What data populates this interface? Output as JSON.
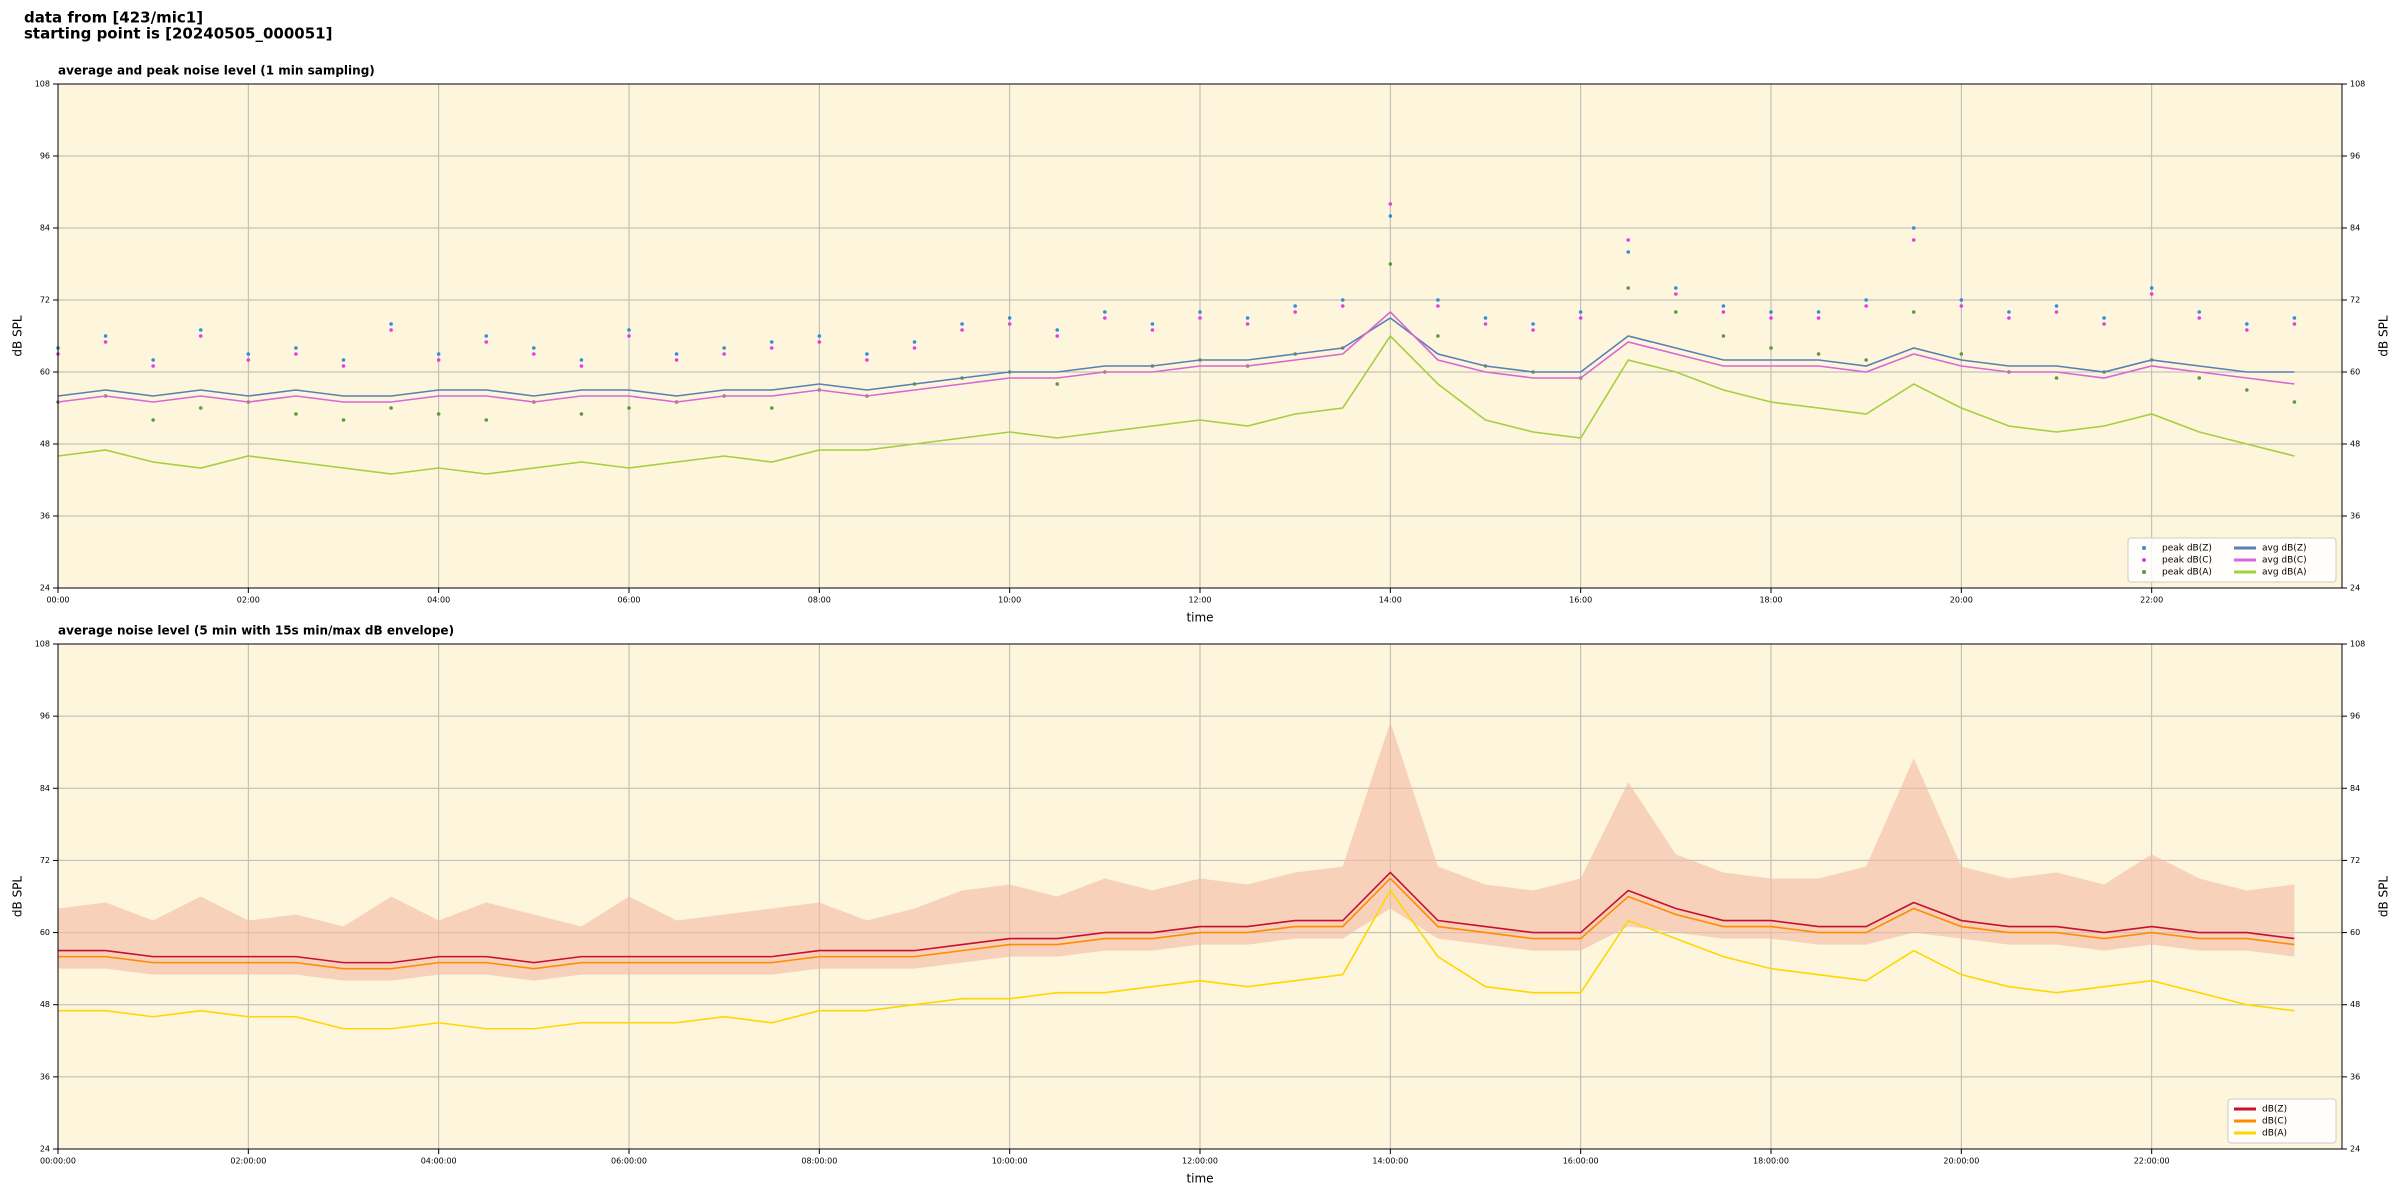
{
  "header": {
    "line1": "data from [423/mic1]",
    "line2": "starting point is [20240505_000051]"
  },
  "chart_data": [
    {
      "type": "line",
      "title": "average and peak noise level (1 min sampling)",
      "xlabel": "time",
      "ylabel": "dB SPL",
      "x": [
        0,
        0.5,
        1,
        1.5,
        2,
        2.5,
        3,
        3.5,
        4,
        4.5,
        5,
        5.5,
        6,
        6.5,
        7,
        7.5,
        8,
        8.5,
        9,
        9.5,
        10,
        10.5,
        11,
        11.5,
        12,
        12.5,
        13,
        13.5,
        14,
        14.5,
        15,
        15.5,
        16,
        16.5,
        17,
        17.5,
        18,
        18.5,
        19,
        19.5,
        20,
        20.5,
        21,
        21.5,
        22,
        22.5,
        23,
        23.5
      ],
      "xlim": [
        0,
        24
      ],
      "xticks": [
        {
          "value": 0,
          "label": "00:00"
        },
        {
          "value": 2,
          "label": "02:00"
        },
        {
          "value": 4,
          "label": "04:00"
        },
        {
          "value": 6,
          "label": "06:00"
        },
        {
          "value": 8,
          "label": "08:00"
        },
        {
          "value": 10,
          "label": "10:00"
        },
        {
          "value": 12,
          "label": "12:00"
        },
        {
          "value": 14,
          "label": "14:00"
        },
        {
          "value": 16,
          "label": "16:00"
        },
        {
          "value": 18,
          "label": "18:00"
        },
        {
          "value": 20,
          "label": "20:00"
        },
        {
          "value": 22,
          "label": "22:00"
        }
      ],
      "ylim": [
        24,
        108
      ],
      "yticks": [
        24,
        36,
        48,
        60,
        72,
        84,
        96,
        108
      ],
      "grid": true,
      "legend": "lower right",
      "legend_columns": 2,
      "series": [
        {
          "name": "peak dB(Z)",
          "color": "#2f8fd8",
          "mark": "dot",
          "values": [
            64,
            66,
            62,
            67,
            63,
            64,
            62,
            68,
            63,
            66,
            64,
            62,
            67,
            63,
            64,
            65,
            66,
            63,
            65,
            68,
            69,
            67,
            70,
            68,
            70,
            69,
            71,
            72,
            86,
            72,
            69,
            68,
            70,
            80,
            74,
            71,
            70,
            70,
            72,
            84,
            72,
            70,
            71,
            69,
            74,
            70,
            68,
            69
          ]
        },
        {
          "name": "peak dB(C)",
          "color": "#e040e0",
          "mark": "dot",
          "values": [
            63,
            65,
            61,
            66,
            62,
            63,
            61,
            67,
            62,
            65,
            63,
            61,
            66,
            62,
            63,
            64,
            65,
            62,
            64,
            67,
            68,
            66,
            69,
            67,
            69,
            68,
            70,
            71,
            88,
            71,
            68,
            67,
            69,
            82,
            73,
            70,
            69,
            69,
            71,
            82,
            71,
            69,
            70,
            68,
            73,
            69,
            67,
            68
          ]
        },
        {
          "name": "peak dB(A)",
          "color": "#5a9a3a",
          "mark": "dot",
          "values": [
            55,
            56,
            52,
            54,
            55,
            53,
            52,
            54,
            53,
            52,
            55,
            53,
            54,
            55,
            56,
            54,
            57,
            56,
            58,
            59,
            60,
            58,
            60,
            61,
            62,
            61,
            63,
            64,
            78,
            66,
            61,
            60,
            59,
            74,
            70,
            66,
            64,
            63,
            62,
            70,
            63,
            60,
            59,
            60,
            62,
            59,
            57,
            55
          ]
        },
        {
          "name": "avg dB(Z)",
          "color": "#5a7fb5",
          "mark": "line",
          "values": [
            56,
            57,
            56,
            57,
            56,
            57,
            56,
            56,
            57,
            57,
            56,
            57,
            57,
            56,
            57,
            57,
            58,
            57,
            58,
            59,
            60,
            60,
            61,
            61,
            62,
            62,
            63,
            64,
            69,
            63,
            61,
            60,
            60,
            66,
            64,
            62,
            62,
            62,
            61,
            64,
            62,
            61,
            61,
            60,
            62,
            61,
            60,
            60
          ]
        },
        {
          "name": "avg dB(C)",
          "color": "#d966d6",
          "mark": "line",
          "values": [
            55,
            56,
            55,
            56,
            55,
            56,
            55,
            55,
            56,
            56,
            55,
            56,
            56,
            55,
            56,
            56,
            57,
            56,
            57,
            58,
            59,
            59,
            60,
            60,
            61,
            61,
            62,
            63,
            70,
            62,
            60,
            59,
            59,
            65,
            63,
            61,
            61,
            61,
            60,
            63,
            61,
            60,
            60,
            59,
            61,
            60,
            59,
            58
          ]
        },
        {
          "name": "avg dB(A)",
          "color": "#a6cf3f",
          "mark": "line",
          "values": [
            46,
            47,
            45,
            44,
            46,
            45,
            44,
            43,
            44,
            43,
            44,
            45,
            44,
            45,
            46,
            45,
            47,
            47,
            48,
            49,
            50,
            49,
            50,
            51,
            52,
            51,
            53,
            54,
            66,
            58,
            52,
            50,
            49,
            62,
            60,
            57,
            55,
            54,
            53,
            58,
            54,
            51,
            50,
            51,
            53,
            50,
            48,
            46
          ]
        }
      ]
    },
    {
      "type": "line",
      "title": "average noise level (5 min with 15s min/max dB envelope)",
      "xlabel": "time",
      "ylabel": "dB SPL",
      "x": [
        0,
        0.5,
        1,
        1.5,
        2,
        2.5,
        3,
        3.5,
        4,
        4.5,
        5,
        5.5,
        6,
        6.5,
        7,
        7.5,
        8,
        8.5,
        9,
        9.5,
        10,
        10.5,
        11,
        11.5,
        12,
        12.5,
        13,
        13.5,
        14,
        14.5,
        15,
        15.5,
        16,
        16.5,
        17,
        17.5,
        18,
        18.5,
        19,
        19.5,
        20,
        20.5,
        21,
        21.5,
        22,
        22.5,
        23,
        23.5
      ],
      "xlim": [
        0,
        24
      ],
      "xticks": [
        {
          "value": 0,
          "label": "00:00:00"
        },
        {
          "value": 2,
          "label": "02:00:00"
        },
        {
          "value": 4,
          "label": "04:00:00"
        },
        {
          "value": 6,
          "label": "06:00:00"
        },
        {
          "value": 8,
          "label": "08:00:00"
        },
        {
          "value": 10,
          "label": "10:00:00"
        },
        {
          "value": 12,
          "label": "12:00:00"
        },
        {
          "value": 14,
          "label": "14:00:00"
        },
        {
          "value": 16,
          "label": "16:00:00"
        },
        {
          "value": 18,
          "label": "18:00:00"
        },
        {
          "value": 20,
          "label": "20:00:00"
        },
        {
          "value": 22,
          "label": "22:00:00"
        }
      ],
      "ylim": [
        24,
        108
      ],
      "yticks": [
        24,
        36,
        48,
        60,
        72,
        84,
        96,
        108
      ],
      "grid": true,
      "legend": "lower right",
      "legend_columns": 1,
      "envelope": {
        "color": "#f4b9a4",
        "min": [
          54,
          54,
          53,
          53,
          53,
          53,
          52,
          52,
          53,
          53,
          52,
          53,
          53,
          53,
          53,
          53,
          54,
          54,
          54,
          55,
          56,
          56,
          57,
          57,
          58,
          58,
          59,
          59,
          64,
          59,
          58,
          57,
          57,
          61,
          60,
          59,
          59,
          58,
          58,
          60,
          59,
          58,
          58,
          57,
          58,
          57,
          57,
          56
        ],
        "max": [
          64,
          65,
          62,
          66,
          62,
          63,
          61,
          66,
          62,
          65,
          63,
          61,
          66,
          62,
          63,
          64,
          65,
          62,
          64,
          67,
          68,
          66,
          69,
          67,
          69,
          68,
          70,
          71,
          95,
          71,
          68,
          67,
          69,
          85,
          73,
          70,
          69,
          69,
          71,
          89,
          71,
          69,
          70,
          68,
          73,
          69,
          67,
          68
        ]
      },
      "series": [
        {
          "name": "dB(Z)",
          "color": "#c8102e",
          "mark": "line",
          "values": [
            57,
            57,
            56,
            56,
            56,
            56,
            55,
            55,
            56,
            56,
            55,
            56,
            56,
            56,
            56,
            56,
            57,
            57,
            57,
            58,
            59,
            59,
            60,
            60,
            61,
            61,
            62,
            62,
            70,
            62,
            61,
            60,
            60,
            67,
            64,
            62,
            62,
            61,
            61,
            65,
            62,
            61,
            61,
            60,
            61,
            60,
            60,
            59
          ]
        },
        {
          "name": "dB(C)",
          "color": "#ff8c00",
          "mark": "line",
          "values": [
            56,
            56,
            55,
            55,
            55,
            55,
            54,
            54,
            55,
            55,
            54,
            55,
            55,
            55,
            55,
            55,
            56,
            56,
            56,
            57,
            58,
            58,
            59,
            59,
            60,
            60,
            61,
            61,
            69,
            61,
            60,
            59,
            59,
            66,
            63,
            61,
            61,
            60,
            60,
            64,
            61,
            60,
            60,
            59,
            60,
            59,
            59,
            58
          ]
        },
        {
          "name": "dB(A)",
          "color": "#ffd700",
          "mark": "line",
          "values": [
            47,
            47,
            46,
            47,
            46,
            46,
            44,
            44,
            45,
            44,
            44,
            45,
            45,
            45,
            46,
            45,
            47,
            47,
            48,
            49,
            49,
            50,
            50,
            51,
            52,
            51,
            52,
            53,
            67,
            56,
            51,
            50,
            50,
            62,
            59,
            56,
            54,
            53,
            52,
            57,
            53,
            51,
            50,
            51,
            52,
            50,
            48,
            47
          ]
        }
      ]
    }
  ]
}
